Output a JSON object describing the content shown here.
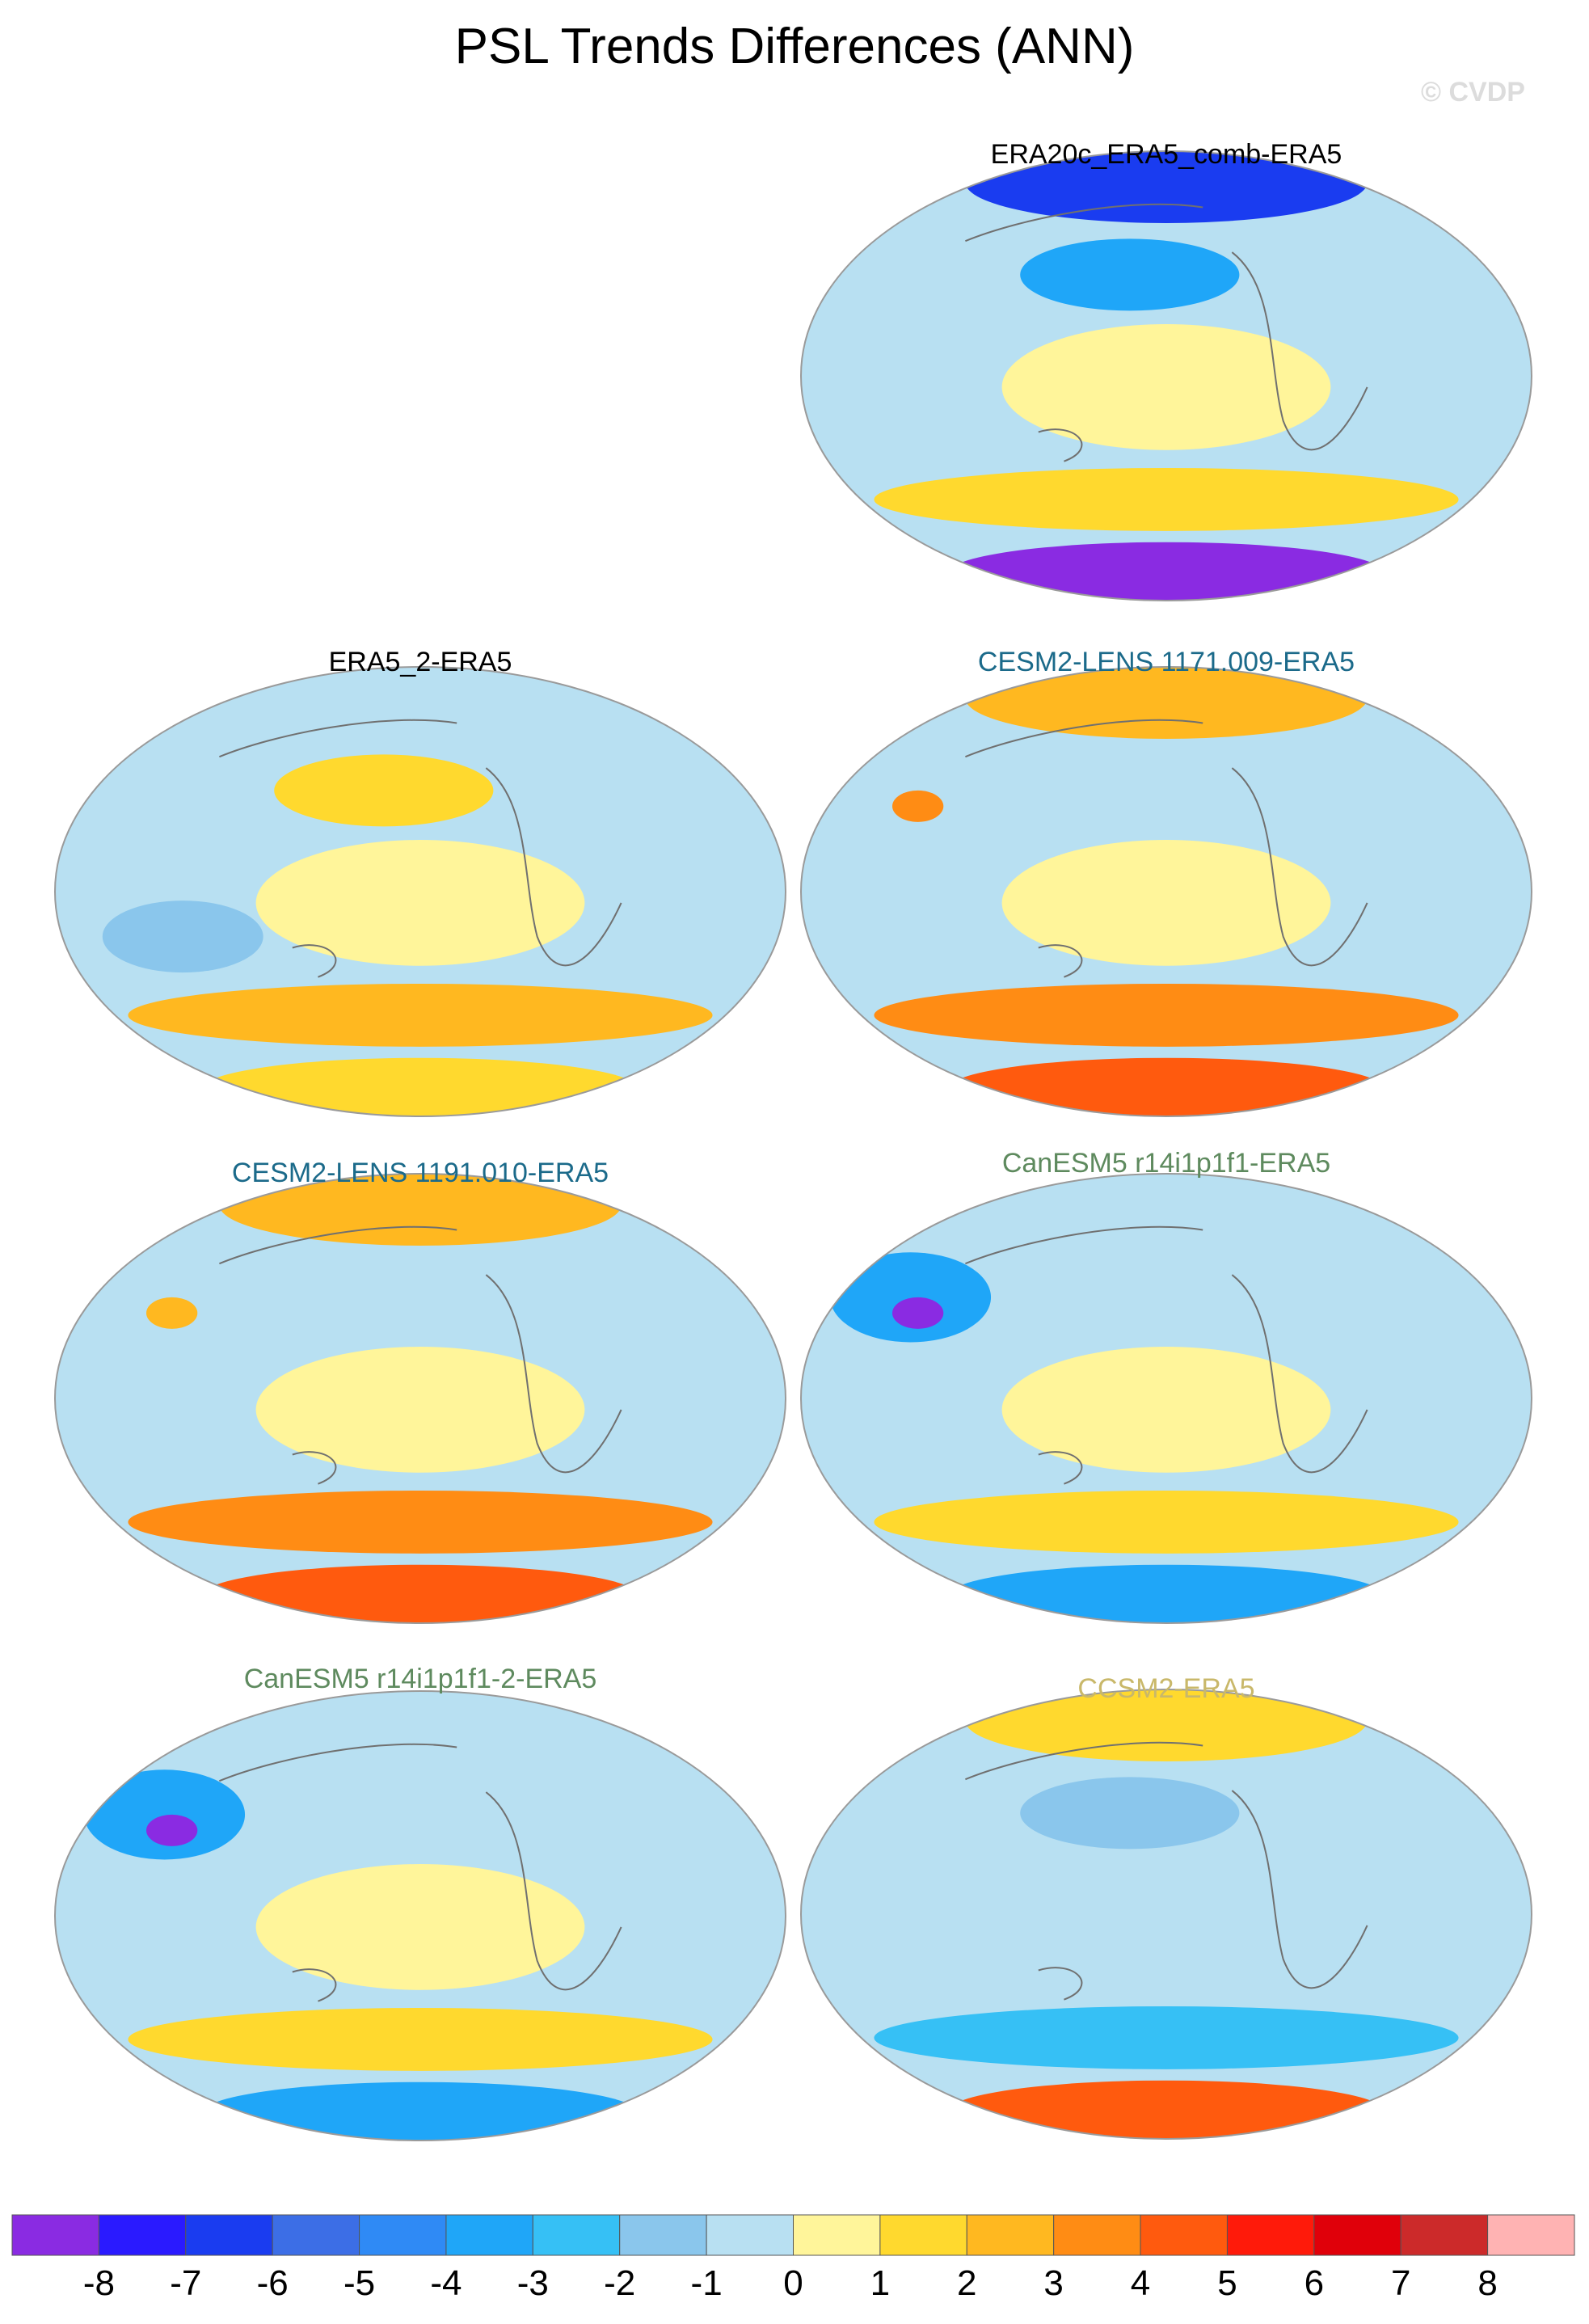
{
  "title": "PSL Trends Differences (ANN)",
  "watermark": "© CVDP",
  "chart_data": {
    "type": "heatmap",
    "title": "PSL Trends Differences (ANN)",
    "panels": [
      {
        "name": "ERA20c_ERA5_comb-ERA5",
        "label_color": "#000000",
        "position": "row1-right",
        "regions": [
          {
            "area": "arctic",
            "value": -6
          },
          {
            "area": "north-pacific",
            "value": -3
          },
          {
            "area": "tropical-pacific",
            "value": 1
          },
          {
            "area": "southern-midlatitudes",
            "value": 2
          },
          {
            "area": "antarctic",
            "value": -8
          }
        ]
      },
      {
        "name": "ERA5_2-ERA5",
        "label_color": "#000000",
        "position": "row2-left",
        "regions": [
          {
            "area": "north-pacific",
            "value": 2
          },
          {
            "area": "tropical-pacific",
            "value": 1
          },
          {
            "area": "indian-ocean",
            "value": -1
          },
          {
            "area": "southern-midlatitudes",
            "value": 3
          },
          {
            "area": "antarctic",
            "value": 2
          }
        ]
      },
      {
        "name": "CESM2-LENS 1171.009-ERA5",
        "label_color": "#1b6a8a",
        "position": "row2-right",
        "regions": [
          {
            "area": "arctic",
            "value": 3
          },
          {
            "area": "tibet",
            "value": 4
          },
          {
            "area": "tropical-pacific",
            "value": 1
          },
          {
            "area": "southern-midlatitudes",
            "value": 4
          },
          {
            "area": "antarctic",
            "value": 5
          }
        ]
      },
      {
        "name": "CESM2-LENS 1191.010-ERA5",
        "label_color": "#1b6a8a",
        "position": "row3-left",
        "regions": [
          {
            "area": "arctic",
            "value": 3
          },
          {
            "area": "tibet",
            "value": 3
          },
          {
            "area": "tropical-pacific",
            "value": 1
          },
          {
            "area": "southern-midlatitudes",
            "value": 4
          },
          {
            "area": "antarctic",
            "value": 5
          }
        ]
      },
      {
        "name": "CanESM5 r14i1p1f1-ERA5",
        "label_color": "#5e8a5e",
        "position": "row3-right",
        "regions": [
          {
            "area": "eurasia",
            "value": -3
          },
          {
            "area": "tibet",
            "value": -8
          },
          {
            "area": "tropical-pacific",
            "value": 1
          },
          {
            "area": "southern-midlatitudes",
            "value": 2
          },
          {
            "area": "antarctic",
            "value": -3
          }
        ]
      },
      {
        "name": "CanESM5 r14i1p1f1-2-ERA5",
        "label_color": "#5e8a5e",
        "position": "row4-left",
        "regions": [
          {
            "area": "eurasia",
            "value": -3
          },
          {
            "area": "tibet",
            "value": -8
          },
          {
            "area": "tropical-pacific",
            "value": 1
          },
          {
            "area": "southern-midlatitudes",
            "value": 2
          },
          {
            "area": "antarctic",
            "value": -3
          }
        ]
      },
      {
        "name": "CCSM2-ERA5",
        "label_color": "#c9b86a",
        "position": "row4-right",
        "regions": [
          {
            "area": "arctic",
            "value": 2
          },
          {
            "area": "north-pacific",
            "value": -1
          },
          {
            "area": "tropical-pacific",
            "value": 0
          },
          {
            "area": "southern-midlatitudes",
            "value": -2
          },
          {
            "area": "antarctic",
            "value": 5
          }
        ]
      }
    ],
    "colorbar": {
      "ticks": [
        "-8",
        "-7",
        "-6",
        "-5",
        "-4",
        "-3",
        "-2",
        "-1",
        "0",
        "1",
        "2",
        "3",
        "4",
        "5",
        "6",
        "7",
        "8"
      ],
      "colors": [
        "#8a2be2",
        "#2a1aff",
        "#1a3cf0",
        "#3c6ee6",
        "#2f8af5",
        "#1fa6f8",
        "#36c0f5",
        "#8ac6ec",
        "#b8e0f2",
        "#fff59a",
        "#ffd92e",
        "#ffb820",
        "#ff8c14",
        "#ff5a0e",
        "#ff1a0a",
        "#e0000a",
        "#cc2a2a",
        "#ffb3b3"
      ]
    }
  }
}
